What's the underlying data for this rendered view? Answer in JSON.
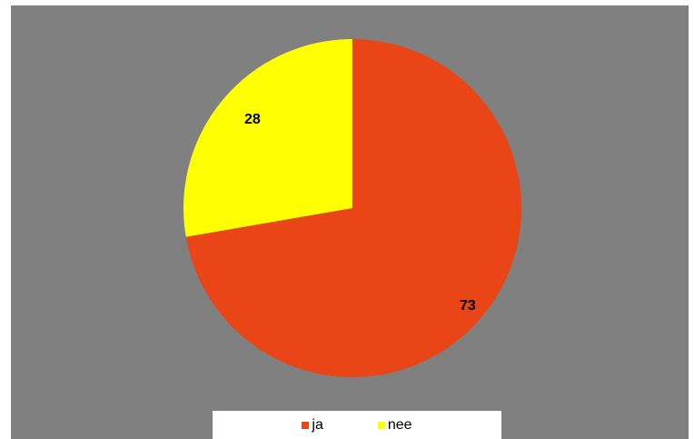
{
  "chart_data": {
    "type": "pie",
    "categories": [
      "ja",
      "nee"
    ],
    "values": [
      73,
      28
    ],
    "colors": [
      "#ea4516",
      "#ffff00"
    ],
    "background": "#808080",
    "legend": {
      "placement": "bottom",
      "entries": [
        "ja",
        "nee"
      ]
    },
    "data_labels": [
      "73",
      "28"
    ]
  }
}
